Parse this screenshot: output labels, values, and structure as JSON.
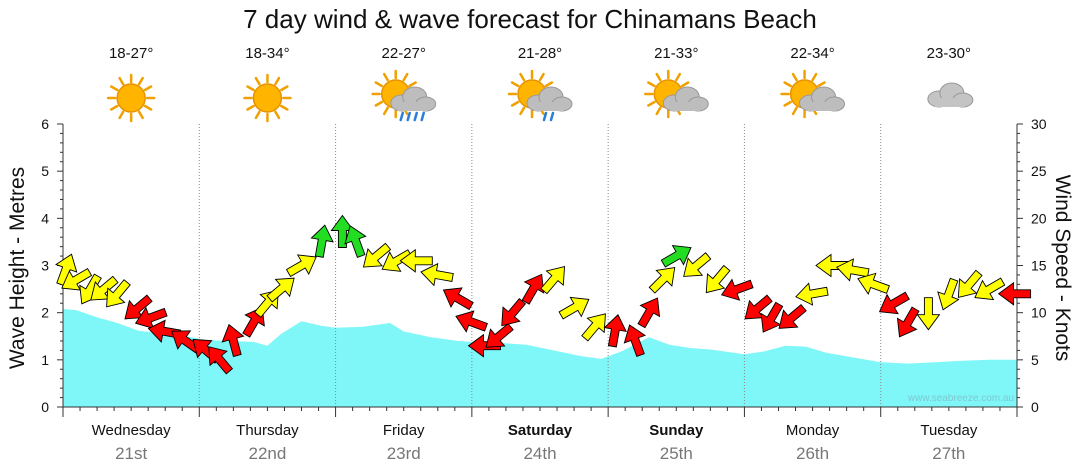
{
  "chart_data": {
    "type": "area",
    "title": "7 day wind & wave forecast for Chinamans Beach",
    "ylabel_left": "Wave Height - Metres",
    "ylabel_right": "Wind Speed - Knots",
    "y_left_range": [
      0,
      6
    ],
    "y_right_range": [
      0,
      30
    ],
    "y_left_ticks": [
      "0",
      "1",
      "2",
      "3",
      "4",
      "5",
      "6"
    ],
    "y_right_ticks": [
      "0",
      "5",
      "10",
      "15",
      "20",
      "25",
      "30"
    ],
    "watermark": "www.seabreeze.com.au",
    "days": [
      {
        "name": "Wednesday",
        "date": "21st",
        "temp": "18-27°",
        "icon": "sun-icon",
        "bold": false
      },
      {
        "name": "Thursday",
        "date": "22nd",
        "temp": "18-34°",
        "icon": "sun-icon",
        "bold": false
      },
      {
        "name": "Friday",
        "date": "23rd",
        "temp": "22-27°",
        "icon": "sun-cloud-rain-icon",
        "bold": false
      },
      {
        "name": "Saturday",
        "date": "24th",
        "temp": "21-28°",
        "icon": "sun-cloud-drizzle-icon",
        "bold": true
      },
      {
        "name": "Sunday",
        "date": "25th",
        "temp": "21-33°",
        "icon": "sun-cloud-icon",
        "bold": true
      },
      {
        "name": "Monday",
        "date": "26th",
        "temp": "22-34°",
        "icon": "sun-cloud-icon",
        "bold": false
      },
      {
        "name": "Tuesday",
        "date": "27th",
        "temp": "23-30°",
        "icon": "cloud-icon",
        "bold": false
      }
    ],
    "wave_series": {
      "name": "Wave Height (m)",
      "t": [
        0,
        0.1,
        0.25,
        0.4,
        0.55,
        0.75,
        0.9,
        1.05,
        1.2,
        1.4,
        1.5,
        1.6,
        1.75,
        1.9,
        2.0,
        2.2,
        2.4,
        2.5,
        2.7,
        2.9,
        3.0,
        3.2,
        3.4,
        3.6,
        3.8,
        3.95,
        4.1,
        4.3,
        4.45,
        4.6,
        4.75,
        5.0,
        5.15,
        5.3,
        5.45,
        5.6,
        5.8,
        6.0,
        6.2,
        6.4,
        6.6,
        6.8,
        7.0
      ],
      "values": [
        2.08,
        2.05,
        1.9,
        1.78,
        1.62,
        1.55,
        1.5,
        1.42,
        1.4,
        1.38,
        1.3,
        1.55,
        1.82,
        1.72,
        1.68,
        1.7,
        1.78,
        1.6,
        1.48,
        1.4,
        1.38,
        1.36,
        1.32,
        1.2,
        1.08,
        1.02,
        1.18,
        1.48,
        1.32,
        1.25,
        1.22,
        1.12,
        1.18,
        1.3,
        1.28,
        1.15,
        1.05,
        0.95,
        0.92,
        0.95,
        0.98,
        1.0,
        1.0
      ],
      "color": "#7ff6f8"
    },
    "wind_series": {
      "name": "Wind Speed (knots)",
      "t": [
        0.02,
        0.1,
        0.2,
        0.3,
        0.4,
        0.55,
        0.65,
        0.75,
        0.9,
        1.05,
        1.15,
        1.25,
        1.4,
        1.5,
        1.6,
        1.75,
        1.9,
        2.05,
        2.15,
        2.3,
        2.45,
        2.6,
        2.75,
        2.9,
        3.0,
        3.1,
        3.2,
        3.3,
        3.45,
        3.6,
        3.75,
        3.9,
        4.05,
        4.2,
        4.3,
        4.4,
        4.5,
        4.65,
        4.8,
        4.95,
        5.1,
        5.2,
        5.35,
        5.5,
        5.65,
        5.8,
        5.95,
        6.1,
        6.2,
        6.35,
        6.5,
        6.65,
        6.8,
        6.99
      ],
      "knots": [
        14.5,
        13.5,
        12.5,
        12.5,
        12,
        10.5,
        9.5,
        8,
        7,
        6,
        5,
        7,
        9,
        11,
        12.5,
        15,
        17.5,
        18.5,
        17.5,
        16,
        15.5,
        15.5,
        14,
        11.5,
        9,
        6.5,
        7.5,
        10,
        12.5,
        13.5,
        10.5,
        8.5,
        8,
        7,
        10,
        13.5,
        16,
        15,
        13.5,
        12.5,
        10.5,
        9.5,
        9.5,
        12,
        15,
        14.5,
        13,
        11,
        9,
        10,
        12,
        13,
        12.5,
        12
      ],
      "dir_deg": [
        20,
        240,
        210,
        230,
        220,
        230,
        250,
        280,
        305,
        310,
        320,
        345,
        30,
        40,
        50,
        60,
        10,
        0,
        340,
        230,
        240,
        270,
        280,
        300,
        290,
        270,
        230,
        220,
        30,
        40,
        60,
        40,
        10,
        340,
        30,
        45,
        60,
        230,
        220,
        250,
        230,
        210,
        230,
        260,
        270,
        280,
        290,
        240,
        210,
        180,
        200,
        220,
        240,
        270
      ],
      "colors": [
        "yellow",
        "yellow",
        "yellow",
        "yellow",
        "yellow",
        "red",
        "red",
        "red",
        "red",
        "red",
        "red",
        "red",
        "red",
        "yellow",
        "yellow",
        "yellow",
        "green",
        "green",
        "green",
        "yellow",
        "yellow",
        "yellow",
        "yellow",
        "red",
        "red",
        "red",
        "red",
        "red",
        "red",
        "yellow",
        "yellow",
        "yellow",
        "red",
        "red",
        "red",
        "yellow",
        "green",
        "yellow",
        "yellow",
        "red",
        "red",
        "red",
        "red",
        "yellow",
        "yellow",
        "yellow",
        "yellow",
        "red",
        "red",
        "yellow",
        "yellow",
        "yellow",
        "yellow",
        "red"
      ],
      "palette": {
        "yellow": "#ffff00",
        "red": "#ff0000",
        "green": "#22dd22"
      }
    }
  }
}
